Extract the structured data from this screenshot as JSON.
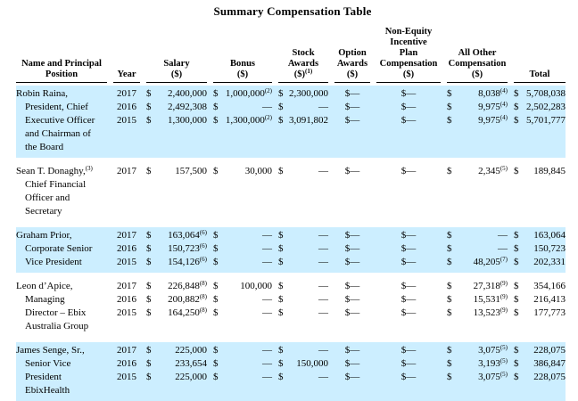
{
  "title": "Summary Compensation Table",
  "colors": {
    "highlight": "#cceeff",
    "text": "#000000",
    "rule": "#000000"
  },
  "columns": [
    {
      "id": "name",
      "lines": [
        "Name and Principal",
        "Position"
      ],
      "sup": ""
    },
    {
      "id": "year",
      "lines": [
        "Year"
      ],
      "sup": ""
    },
    {
      "id": "salary",
      "lines": [
        "Salary",
        "($)"
      ],
      "sup": ""
    },
    {
      "id": "bonus",
      "lines": [
        "Bonus",
        "($)"
      ],
      "sup": ""
    },
    {
      "id": "stock",
      "lines": [
        "Stock",
        "Awards",
        "($)"
      ],
      "sup": "(1)"
    },
    {
      "id": "option",
      "lines": [
        "Option",
        "Awards",
        "($)"
      ],
      "sup": ""
    },
    {
      "id": "noneq",
      "lines": [
        "Non-Equity",
        "Incentive",
        "Plan",
        "Compensation",
        "($)"
      ],
      "sup": ""
    },
    {
      "id": "allother",
      "lines": [
        "All Other",
        "Compensation",
        "($)"
      ],
      "sup": ""
    },
    {
      "id": "total",
      "lines": [
        "Total"
      ],
      "sup": ""
    }
  ],
  "money_column_ids": [
    "salary",
    "bonus",
    "stock",
    "option",
    "noneq",
    "allother",
    "total"
  ],
  "groups": [
    {
      "highlight": true,
      "name": {
        "first": "Robin Raina,",
        "sup": "",
        "rest": [
          "President, Chief",
          "Executive Officer",
          "and Chairman of",
          "the Board"
        ]
      },
      "rows": [
        {
          "year": "2017",
          "salary": {
            "v": "2,400,000"
          },
          "bonus": {
            "v": "1,000,000",
            "sup": "(2)"
          },
          "stock": {
            "v": "2,300,000"
          },
          "option": {
            "v": "—",
            "c": true
          },
          "noneq": {
            "v": "—",
            "c": true
          },
          "allother": {
            "v": "8,038",
            "sup": "(4)"
          },
          "total": {
            "v": "5,708,038"
          }
        },
        {
          "year": "2016",
          "salary": {
            "v": "2,492,308"
          },
          "bonus": {
            "v": "—"
          },
          "stock": {
            "v": "—"
          },
          "option": {
            "v": "—",
            "c": true
          },
          "noneq": {
            "v": "—",
            "c": true
          },
          "allother": {
            "v": "9,975",
            "sup": "(4)"
          },
          "total": {
            "v": "2,502,283"
          }
        },
        {
          "year": "2015",
          "salary": {
            "v": "1,300,000"
          },
          "bonus": {
            "v": "1,300,000",
            "sup": "(2)"
          },
          "stock": {
            "v": "3,091,802"
          },
          "option": {
            "v": "—",
            "c": true
          },
          "noneq": {
            "v": "—",
            "c": true
          },
          "allother": {
            "v": "9,975",
            "sup": "(4)"
          },
          "total": {
            "v": "5,701,777"
          }
        }
      ]
    },
    {
      "highlight": false,
      "name": {
        "first": "Sean T. Donaghy,",
        "sup": "(3)",
        "rest": [
          "Chief Financial",
          "Officer and",
          "Secretary"
        ]
      },
      "rows": [
        {
          "year": "2017",
          "salary": {
            "v": "157,500"
          },
          "bonus": {
            "v": "30,000"
          },
          "stock": {
            "v": "—"
          },
          "option": {
            "v": "—",
            "c": true
          },
          "noneq": {
            "v": "—",
            "c": true
          },
          "allother": {
            "v": "2,345",
            "sup": "(5)"
          },
          "total": {
            "v": "189,845"
          }
        }
      ]
    },
    {
      "highlight": true,
      "name": {
        "first": "Graham Prior,",
        "sup": "",
        "rest": [
          "Corporate Senior",
          "Vice President"
        ]
      },
      "rows": [
        {
          "year": "2017",
          "salary": {
            "v": "163,064",
            "sup": "(6)"
          },
          "bonus": {
            "v": "—"
          },
          "stock": {
            "v": "—"
          },
          "option": {
            "v": "—",
            "c": true
          },
          "noneq": {
            "v": "—",
            "c": true
          },
          "allother": {
            "v": "—"
          },
          "total": {
            "v": "163,064"
          }
        },
        {
          "year": "2016",
          "salary": {
            "v": "150,723",
            "sup": "(6)"
          },
          "bonus": {
            "v": "—"
          },
          "stock": {
            "v": "—"
          },
          "option": {
            "v": "—",
            "c": true
          },
          "noneq": {
            "v": "—",
            "c": true
          },
          "allother": {
            "v": "—"
          },
          "total": {
            "v": "150,723"
          }
        },
        {
          "year": "2015",
          "salary": {
            "v": "154,126",
            "sup": "(6)"
          },
          "bonus": {
            "v": "—"
          },
          "stock": {
            "v": "—"
          },
          "option": {
            "v": "—",
            "c": true
          },
          "noneq": {
            "v": "—",
            "c": true
          },
          "allother": {
            "v": "48,205",
            "sup": "(7)"
          },
          "total": {
            "v": "202,331"
          }
        }
      ]
    },
    {
      "highlight": false,
      "name": {
        "first": "Leon d’Apice,",
        "sup": "",
        "rest": [
          "Managing",
          "Director – Ebix",
          "Australia Group"
        ]
      },
      "rows": [
        {
          "year": "2017",
          "salary": {
            "v": "226,848",
            "sup": "(8)"
          },
          "bonus": {
            "v": "100,000"
          },
          "stock": {
            "v": "—"
          },
          "option": {
            "v": "—",
            "c": true
          },
          "noneq": {
            "v": "—",
            "c": true
          },
          "allother": {
            "v": "27,318",
            "sup": "(9)"
          },
          "total": {
            "v": "354,166"
          }
        },
        {
          "year": "2016",
          "salary": {
            "v": "200,882",
            "sup": "(8)"
          },
          "bonus": {
            "v": "—"
          },
          "stock": {
            "v": "—"
          },
          "option": {
            "v": "—",
            "c": true
          },
          "noneq": {
            "v": "—",
            "c": true
          },
          "allother": {
            "v": "15,531",
            "sup": "(9)"
          },
          "total": {
            "v": "216,413"
          }
        },
        {
          "year": "2015",
          "salary": {
            "v": "164,250",
            "sup": "(8)"
          },
          "bonus": {
            "v": "—"
          },
          "stock": {
            "v": "—"
          },
          "option": {
            "v": "—",
            "c": true
          },
          "noneq": {
            "v": "—",
            "c": true
          },
          "allother": {
            "v": "13,523",
            "sup": "(9)"
          },
          "total": {
            "v": "177,773"
          }
        }
      ]
    },
    {
      "highlight": true,
      "name": {
        "first": "James Senge, Sr.,",
        "sup": "",
        "rest": [
          "Senior Vice",
          "President",
          "EbixHealth"
        ]
      },
      "rows": [
        {
          "year": "2017",
          "salary": {
            "v": "225,000"
          },
          "bonus": {
            "v": "—"
          },
          "stock": {
            "v": "—"
          },
          "option": {
            "v": "—",
            "c": true
          },
          "noneq": {
            "v": "—",
            "c": true
          },
          "allother": {
            "v": "3,075",
            "sup": "(5)"
          },
          "total": {
            "v": "228,075"
          }
        },
        {
          "year": "2016",
          "salary": {
            "v": "233,654"
          },
          "bonus": {
            "v": "—"
          },
          "stock": {
            "v": "150,000"
          },
          "option": {
            "v": "—",
            "c": true
          },
          "noneq": {
            "v": "—",
            "c": true
          },
          "allother": {
            "v": "3,193",
            "sup": "(5)"
          },
          "total": {
            "v": "386,847"
          }
        },
        {
          "year": "2015",
          "salary": {
            "v": "225,000"
          },
          "bonus": {
            "v": "—"
          },
          "stock": {
            "v": "—"
          },
          "option": {
            "v": "—",
            "c": true
          },
          "noneq": {
            "v": "—",
            "c": true
          },
          "allother": {
            "v": "3,075",
            "sup": "(5)"
          },
          "total": {
            "v": "228,075"
          }
        }
      ]
    }
  ]
}
